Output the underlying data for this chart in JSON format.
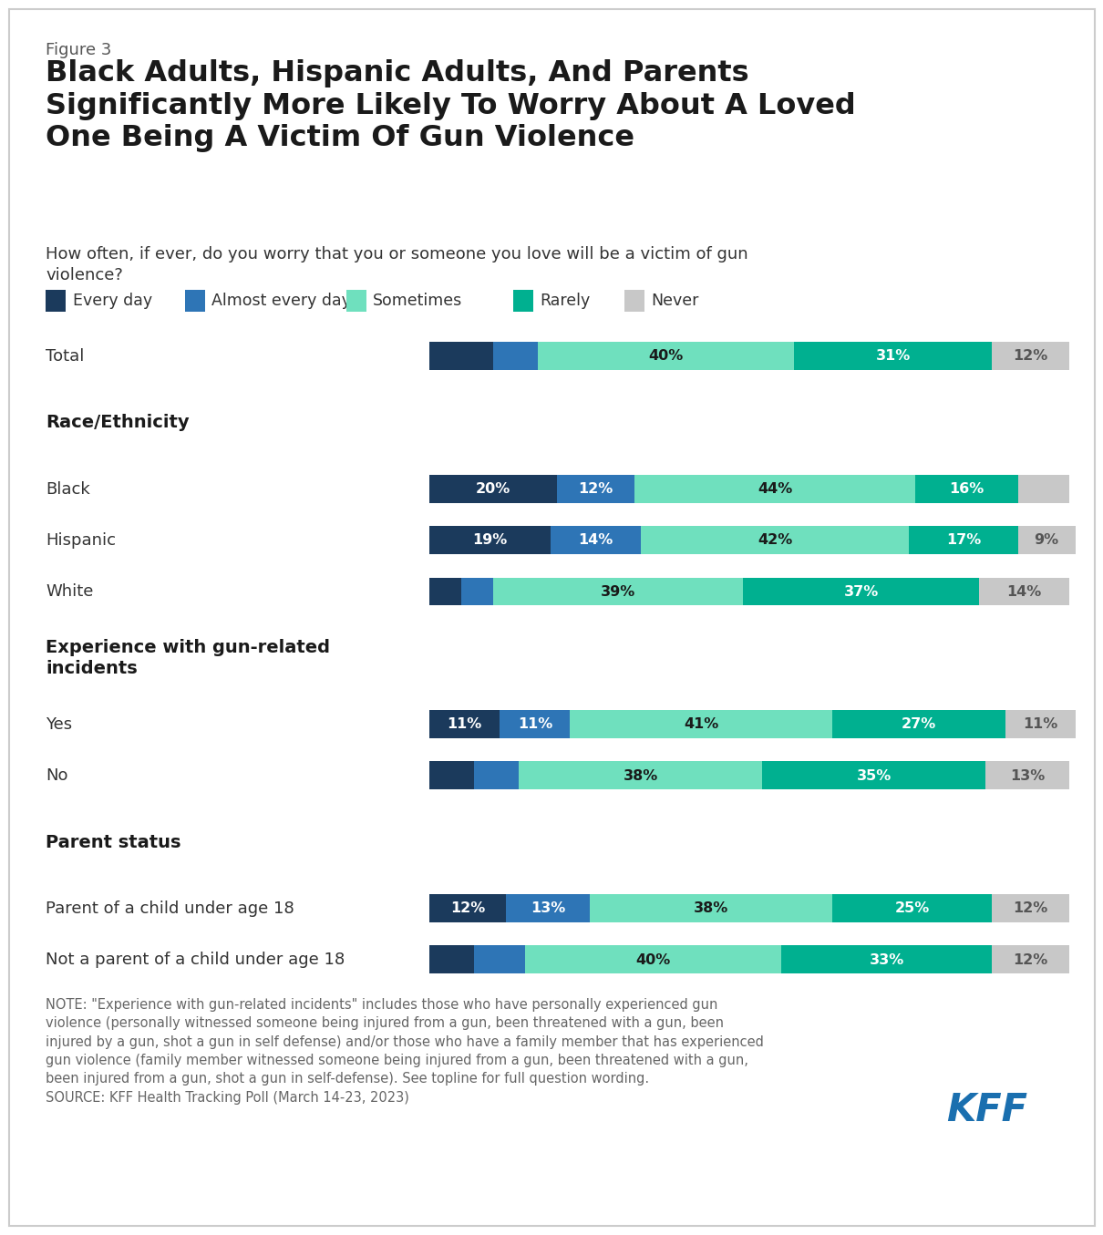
{
  "figure_label": "Figure 3",
  "title": "Black Adults, Hispanic Adults, And Parents\nSignificantly More Likely To Worry About A Loved\nOne Being A Victim Of Gun Violence",
  "subtitle": "How often, if ever, do you worry that you or someone you love will be a victim of gun\nviolence?",
  "legend_items": [
    "Every day",
    "Almost every day",
    "Sometimes",
    "Rarely",
    "Never"
  ],
  "colors": [
    "#1b3a5c",
    "#2e75b6",
    "#6fe0be",
    "#00b090",
    "#c8c8c8"
  ],
  "rows": [
    {
      "label": "Total",
      "is_header": false,
      "data": [
        10,
        7,
        40,
        31,
        12
      ],
      "bar_labels": [
        "",
        "",
        "40%",
        "31%",
        "12%"
      ]
    },
    {
      "label": "Race/Ethnicity",
      "is_header": true,
      "data": null,
      "bar_labels": null
    },
    {
      "label": "Black",
      "is_header": false,
      "data": [
        20,
        12,
        44,
        16,
        8
      ],
      "bar_labels": [
        "20%",
        "12%",
        "44%",
        "16%",
        ""
      ]
    },
    {
      "label": "Hispanic",
      "is_header": false,
      "data": [
        19,
        14,
        42,
        17,
        9
      ],
      "bar_labels": [
        "19%",
        "14%",
        "42%",
        "17%",
        "9%"
      ]
    },
    {
      "label": "White",
      "is_header": false,
      "data": [
        5,
        5,
        39,
        37,
        14
      ],
      "bar_labels": [
        "",
        "",
        "39%",
        "37%",
        "14%"
      ]
    },
    {
      "label": "Experience with gun-related\nincidents",
      "is_header": true,
      "data": null,
      "bar_labels": null
    },
    {
      "label": "Yes",
      "is_header": false,
      "data": [
        11,
        11,
        41,
        27,
        11
      ],
      "bar_labels": [
        "11%",
        "11%",
        "41%",
        "27%",
        "11%"
      ]
    },
    {
      "label": "No",
      "is_header": false,
      "data": [
        7,
        7,
        38,
        35,
        13
      ],
      "bar_labels": [
        "",
        "",
        "38%",
        "35%",
        "13%"
      ]
    },
    {
      "label": "Parent status",
      "is_header": true,
      "data": null,
      "bar_labels": null
    },
    {
      "label": "Parent of a child under age 18",
      "is_header": false,
      "data": [
        12,
        13,
        38,
        25,
        12
      ],
      "bar_labels": [
        "12%",
        "13%",
        "38%",
        "25%",
        "12%"
      ]
    },
    {
      "label": "Not a parent of a child under age 18",
      "is_header": false,
      "data": [
        7,
        8,
        40,
        33,
        12
      ],
      "bar_labels": [
        "",
        "",
        "40%",
        "33%",
        "12%"
      ]
    }
  ],
  "note": "NOTE: \"Experience with gun-related incidents\" includes those who have personally experienced gun\nviolence (personally witnessed someone being injured from a gun, been threatened with a gun, been\ninjured by a gun, shot a gun in self defense) and/or those who have a family member that has experienced\ngun violence (family member witnessed someone being injured from a gun, been threatened with a gun,\nbeen injured from a gun, shot a gun in self-defense). See topline for full question wording.\nSOURCE: KFF Health Tracking Poll (March 14-23, 2023)",
  "background_color": "#ffffff",
  "text_color": "#333333",
  "header_color": "#1a1a1a"
}
